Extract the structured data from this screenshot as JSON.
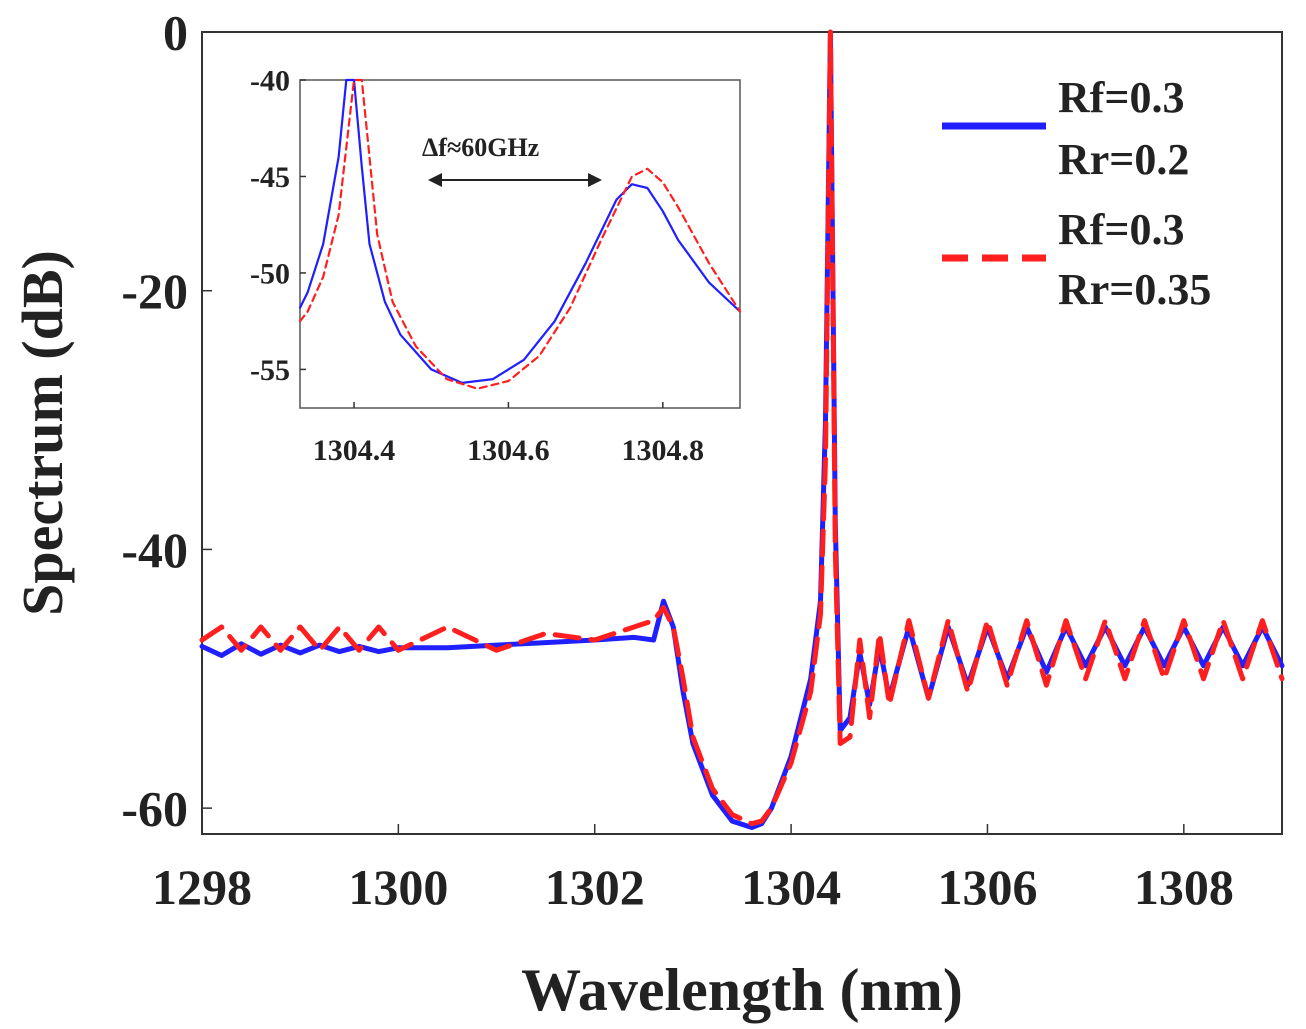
{
  "chart_data": [
    {
      "type": "line",
      "xlabel": "Wavelength (nm)",
      "ylabel": "Spectrum (dB)",
      "xlim": [
        1298,
        1309
      ],
      "ylim": [
        -62,
        0
      ],
      "xticks": [
        "1298",
        "1300",
        "1302",
        "1304",
        "1306",
        "1308"
      ],
      "yticks": [
        "0",
        "-20",
        "-40",
        "-60"
      ],
      "grid": false,
      "legend_position": "top-right",
      "series": [
        {
          "name": "Rf=0.3 Rr=0.2",
          "legend_lines": [
            "Rf=0.3",
            "Rr=0.2"
          ],
          "color": "#1f1fff",
          "style": "solid",
          "x": [
            1298.0,
            1298.2,
            1298.4,
            1298.6,
            1298.8,
            1299.0,
            1299.2,
            1299.4,
            1299.6,
            1299.8,
            1300.0,
            1300.5,
            1301.0,
            1301.5,
            1302.0,
            1302.4,
            1302.6,
            1302.7,
            1302.8,
            1302.9,
            1303.0,
            1303.2,
            1303.4,
            1303.6,
            1303.7,
            1303.8,
            1304.0,
            1304.2,
            1304.3,
            1304.35,
            1304.4,
            1304.45,
            1304.5,
            1304.6,
            1304.7,
            1304.8,
            1304.9,
            1305.0,
            1305.2,
            1305.4,
            1305.6,
            1305.8,
            1306.0,
            1306.2,
            1306.4,
            1306.6,
            1306.8,
            1307.0,
            1307.2,
            1307.4,
            1307.6,
            1307.8,
            1308.0,
            1308.2,
            1308.4,
            1308.6,
            1308.8,
            1309.0
          ],
          "y": [
            -47.5,
            -48.2,
            -47.3,
            -48.1,
            -47.4,
            -48.0,
            -47.4,
            -47.9,
            -47.5,
            -47.9,
            -47.6,
            -47.6,
            -47.4,
            -47.2,
            -47.0,
            -46.8,
            -47.0,
            -44.0,
            -46.0,
            -51.0,
            -55.0,
            -59.0,
            -61.0,
            -61.5,
            -61.2,
            -60.0,
            -56.0,
            -50.0,
            -44.0,
            -30.0,
            0.0,
            -38.0,
            -54.0,
            -53.0,
            -48.0,
            -52.0,
            -47.5,
            -51.5,
            -46.0,
            -51.5,
            -46.0,
            -50.5,
            -46.0,
            -50.0,
            -46.0,
            -49.5,
            -46.0,
            -49.0,
            -46.0,
            -49.0,
            -46.0,
            -49.0,
            -46.0,
            -49.0,
            -46.0,
            -49.0,
            -46.0,
            -49.0
          ]
        },
        {
          "name": "Rf=0.3 Rr=0.35",
          "legend_lines": [
            "Rf=0.3",
            "Rr=0.35"
          ],
          "color": "#ff1f1f",
          "style": "dashed",
          "x": [
            1298.0,
            1298.2,
            1298.4,
            1298.6,
            1298.8,
            1299.0,
            1299.2,
            1299.4,
            1299.6,
            1299.8,
            1300.0,
            1300.5,
            1301.0,
            1301.5,
            1302.0,
            1302.4,
            1302.6,
            1302.7,
            1302.8,
            1302.9,
            1303.0,
            1303.2,
            1303.4,
            1303.6,
            1303.7,
            1303.8,
            1304.0,
            1304.2,
            1304.3,
            1304.35,
            1304.4,
            1304.45,
            1304.5,
            1304.6,
            1304.7,
            1304.8,
            1304.9,
            1305.0,
            1305.2,
            1305.4,
            1305.6,
            1305.8,
            1306.0,
            1306.2,
            1306.4,
            1306.6,
            1306.8,
            1307.0,
            1307.2,
            1307.4,
            1307.6,
            1307.8,
            1308.0,
            1308.2,
            1308.4,
            1308.6,
            1308.8,
            1309.0
          ],
          "y": [
            -47.0,
            -46.0,
            -47.8,
            -46.0,
            -47.8,
            -46.0,
            -47.8,
            -46.0,
            -47.8,
            -46.0,
            -47.8,
            -46.0,
            -47.8,
            -46.5,
            -47.0,
            -46.0,
            -45.5,
            -44.5,
            -46.0,
            -50.0,
            -54.5,
            -58.5,
            -60.5,
            -61.2,
            -61.0,
            -60.0,
            -56.5,
            -51.0,
            -45.0,
            -33.0,
            0.0,
            -40.0,
            -55.0,
            -54.5,
            -47.0,
            -53.0,
            -46.5,
            -52.0,
            -45.5,
            -51.5,
            -45.5,
            -51.0,
            -45.5,
            -50.5,
            -45.5,
            -50.5,
            -45.5,
            -50.0,
            -45.5,
            -50.0,
            -45.5,
            -50.0,
            -45.5,
            -50.0,
            -45.5,
            -50.0,
            -45.5,
            -50.0
          ]
        }
      ]
    },
    {
      "type": "line",
      "title": "",
      "xlim": [
        1304.33,
        1304.9
      ],
      "ylim": [
        -57,
        -40
      ],
      "xticks": [
        "1304.4",
        "1304.6",
        "1304.8"
      ],
      "yticks": [
        "-40",
        "-45",
        "-50",
        "-55"
      ],
      "annotation": "Δf≈60GHz",
      "series": [
        {
          "color": "#1f1fff",
          "style": "solid",
          "x": [
            1304.33,
            1304.34,
            1304.36,
            1304.38,
            1304.39,
            1304.4,
            1304.41,
            1304.42,
            1304.44,
            1304.46,
            1304.5,
            1304.54,
            1304.58,
            1304.62,
            1304.66,
            1304.7,
            1304.74,
            1304.76,
            1304.78,
            1304.8,
            1304.82,
            1304.86,
            1304.9
          ],
          "y": [
            -51.8,
            -51.0,
            -48.5,
            -44.0,
            -40.0,
            -40.0,
            -44.5,
            -48.5,
            -51.5,
            -53.2,
            -55.0,
            -55.7,
            -55.5,
            -54.5,
            -52.5,
            -49.5,
            -46.2,
            -45.4,
            -45.6,
            -46.8,
            -48.3,
            -50.5,
            -52.0
          ]
        },
        {
          "color": "#ff1f1f",
          "style": "dashed",
          "x": [
            1304.33,
            1304.34,
            1304.36,
            1304.38,
            1304.4,
            1304.41,
            1304.42,
            1304.43,
            1304.45,
            1304.48,
            1304.52,
            1304.56,
            1304.6,
            1304.64,
            1304.68,
            1304.72,
            1304.76,
            1304.78,
            1304.8,
            1304.82,
            1304.86,
            1304.9
          ],
          "y": [
            -52.5,
            -52.0,
            -50.2,
            -47.0,
            -40.0,
            -40.0,
            -44.0,
            -48.0,
            -51.5,
            -53.8,
            -55.5,
            -56.0,
            -55.6,
            -54.3,
            -51.8,
            -48.3,
            -45.0,
            -44.6,
            -45.3,
            -46.6,
            -49.5,
            -52.0
          ]
        }
      ]
    }
  ]
}
